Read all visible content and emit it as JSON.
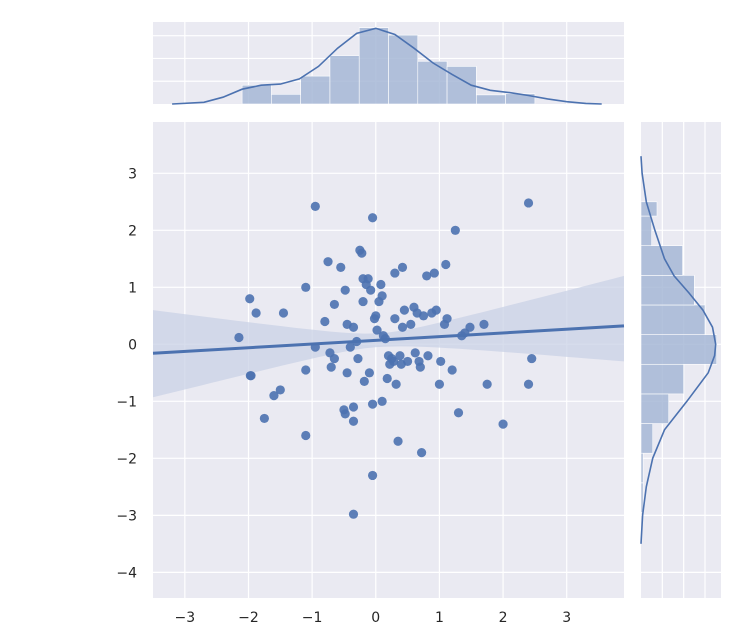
{
  "chart_data": {
    "type": "scatter",
    "title": "",
    "xlabel": "",
    "ylabel": "",
    "xlim": [
      -3.5,
      3.9
    ],
    "ylim": [
      -4.45,
      3.9
    ],
    "x_ticks": [
      -3,
      -2,
      -1,
      0,
      1,
      2,
      3
    ],
    "y_ticks": [
      -4,
      -3,
      -2,
      -1,
      0,
      1,
      2,
      3
    ],
    "x_tick_labels": [
      "−3",
      "−2",
      "−1",
      "0",
      "1",
      "2",
      "3"
    ],
    "y_tick_labels": [
      "−4",
      "−3",
      "−2",
      "−1",
      "0",
      "1",
      "2",
      "3"
    ],
    "grid": true,
    "colors": {
      "background": "#eaeaf2",
      "grid": "#ffffff",
      "points": "#4c72b0",
      "line": "#4c72b0",
      "band": "#c9d1e6",
      "hist": "#a6b7d6"
    },
    "scatter": {
      "points": [
        [
          -2.15,
          0.12
        ],
        [
          -1.98,
          0.8
        ],
        [
          -1.88,
          0.55
        ],
        [
          -1.97,
          -0.55
        ],
        [
          -1.96,
          -0.55
        ],
        [
          -1.75,
          -1.3
        ],
        [
          -1.6,
          -0.9
        ],
        [
          -1.5,
          -0.8
        ],
        [
          -1.45,
          0.55
        ],
        [
          -1.1,
          1.0
        ],
        [
          -1.1,
          -0.45
        ],
        [
          -1.1,
          -1.6
        ],
        [
          -0.95,
          2.42
        ],
        [
          -0.95,
          -0.05
        ],
        [
          -0.8,
          0.4
        ],
        [
          -0.75,
          1.45
        ],
        [
          -0.72,
          -0.15
        ],
        [
          -0.7,
          -0.4
        ],
        [
          -0.65,
          -0.25
        ],
        [
          -0.65,
          0.7
        ],
        [
          -0.55,
          1.35
        ],
        [
          -0.5,
          -1.15
        ],
        [
          -0.48,
          -1.22
        ],
        [
          -0.48,
          0.95
        ],
        [
          -0.45,
          0.35
        ],
        [
          -0.45,
          -0.5
        ],
        [
          -0.4,
          -0.05
        ],
        [
          -0.35,
          0.3
        ],
        [
          -0.35,
          -1.1
        ],
        [
          -0.35,
          -1.35
        ],
        [
          -0.35,
          -2.98
        ],
        [
          -0.3,
          0.05
        ],
        [
          -0.28,
          -0.25
        ],
        [
          -0.25,
          1.65
        ],
        [
          -0.22,
          1.6
        ],
        [
          -0.2,
          1.15
        ],
        [
          -0.2,
          0.75
        ],
        [
          -0.18,
          -0.65
        ],
        [
          -0.15,
          1.05
        ],
        [
          -0.12,
          1.15
        ],
        [
          -0.1,
          -0.5
        ],
        [
          -0.08,
          0.95
        ],
        [
          -0.05,
          2.22
        ],
        [
          -0.05,
          -1.05
        ],
        [
          -0.05,
          -2.3
        ],
        [
          -0.02,
          0.45
        ],
        [
          0.0,
          0.5
        ],
        [
          0.02,
          0.25
        ],
        [
          0.05,
          0.75
        ],
        [
          0.08,
          1.05
        ],
        [
          0.1,
          0.85
        ],
        [
          0.1,
          -1.0
        ],
        [
          0.12,
          0.15
        ],
        [
          0.15,
          0.1
        ],
        [
          0.18,
          -0.6
        ],
        [
          0.2,
          -0.2
        ],
        [
          0.22,
          -0.35
        ],
        [
          0.25,
          -0.25
        ],
        [
          0.28,
          -0.3
        ],
        [
          0.3,
          0.45
        ],
        [
          0.3,
          1.25
        ],
        [
          0.32,
          -0.7
        ],
        [
          0.35,
          -1.7
        ],
        [
          0.38,
          -0.2
        ],
        [
          0.4,
          -0.35
        ],
        [
          0.42,
          0.3
        ],
        [
          0.42,
          1.35
        ],
        [
          0.45,
          0.6
        ],
        [
          0.5,
          -0.3
        ],
        [
          0.55,
          0.35
        ],
        [
          0.6,
          0.65
        ],
        [
          0.62,
          -0.15
        ],
        [
          0.65,
          0.55
        ],
        [
          0.68,
          -0.3
        ],
        [
          0.7,
          -0.4
        ],
        [
          0.72,
          -1.9
        ],
        [
          0.75,
          0.5
        ],
        [
          0.8,
          1.2
        ],
        [
          0.82,
          -0.2
        ],
        [
          0.88,
          0.55
        ],
        [
          0.92,
          1.25
        ],
        [
          0.95,
          0.6
        ],
        [
          1.0,
          -0.7
        ],
        [
          1.02,
          -0.3
        ],
        [
          1.08,
          0.35
        ],
        [
          1.1,
          1.4
        ],
        [
          1.12,
          0.45
        ],
        [
          1.2,
          -0.45
        ],
        [
          1.25,
          2.0
        ],
        [
          1.3,
          -1.2
        ],
        [
          1.35,
          0.15
        ],
        [
          1.4,
          0.2
        ],
        [
          1.48,
          0.3
        ],
        [
          1.7,
          0.35
        ],
        [
          1.75,
          -0.7
        ],
        [
          2.0,
          -1.4
        ],
        [
          2.4,
          2.48
        ],
        [
          2.4,
          -0.7
        ],
        [
          2.45,
          -0.25
        ]
      ]
    },
    "regression": {
      "x_range": [
        -3.5,
        3.9
      ],
      "slope": 0.065,
      "intercept": 0.07,
      "ci_upper": [
        0.6,
        1.2
      ],
      "ci_lower": [
        -0.93,
        -0.3
      ]
    },
    "x_marginal": {
      "bin_edges": [
        -2.1,
        -1.64,
        -1.18,
        -0.72,
        -0.26,
        0.2,
        0.66,
        1.12,
        1.58,
        2.04,
        2.5
      ],
      "density": [
        0.165,
        0.085,
        0.245,
        0.425,
        0.67,
        0.605,
        0.375,
        0.33,
        0.08,
        0.09
      ],
      "kde_x": [
        -3.2,
        -2.7,
        -2.4,
        -2.1,
        -1.8,
        -1.5,
        -1.2,
        -0.9,
        -0.6,
        -0.3,
        0.0,
        0.3,
        0.6,
        0.9,
        1.2,
        1.5,
        1.8,
        2.1,
        2.4,
        2.7,
        3.0,
        3.3,
        3.55
      ],
      "kde_y": [
        0.0,
        0.015,
        0.06,
        0.13,
        0.165,
        0.175,
        0.22,
        0.33,
        0.49,
        0.62,
        0.665,
        0.61,
        0.49,
        0.36,
        0.26,
        0.165,
        0.12,
        0.1,
        0.075,
        0.045,
        0.02,
        0.005,
        0.0
      ]
    },
    "y_marginal": {
      "bin_edges": [
        -2.95,
        -2.43,
        -1.91,
        -1.39,
        -0.87,
        -0.35,
        0.17,
        0.69,
        1.21,
        1.73,
        2.25,
        2.5
      ],
      "density": [
        0.02,
        0.02,
        0.11,
        0.26,
        0.4,
        0.71,
        0.6,
        0.5,
        0.39,
        0.1,
        0.15
      ],
      "kde_y": [
        -3.5,
        -3.0,
        -2.5,
        -2.0,
        -1.5,
        -1.0,
        -0.5,
        -0.2,
        0.0,
        0.3,
        0.6,
        0.9,
        1.2,
        1.5,
        2.0,
        2.5,
        3.0,
        3.3
      ],
      "kde_x": [
        0.0,
        0.015,
        0.05,
        0.11,
        0.22,
        0.43,
        0.63,
        0.69,
        0.7,
        0.67,
        0.58,
        0.45,
        0.31,
        0.22,
        0.13,
        0.05,
        0.01,
        0.0
      ]
    }
  }
}
